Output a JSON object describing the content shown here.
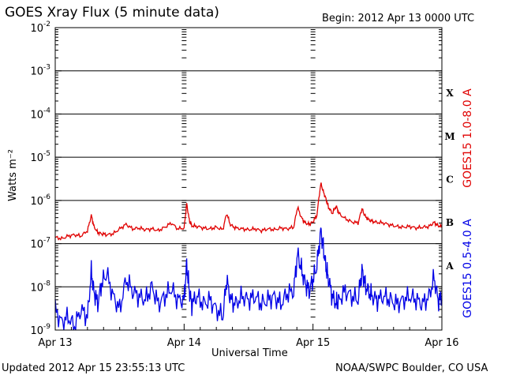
{
  "header": {
    "title": "GOES Xray Flux (5 minute data)",
    "begin": "Begin:  2012 Apr 13 0000 UTC"
  },
  "footer": {
    "updated": "Updated 2012 Apr 15 23:55:13 UTC",
    "source": "NOAA/SWPC Boulder, CO USA"
  },
  "chart_data": {
    "type": "line",
    "title": "GOES Xray Flux (5 minute data)",
    "xlabel": "Universal Time",
    "ylabel": "Watts m⁻²",
    "yscale": "log",
    "ylim": [
      1e-09,
      0.01
    ],
    "xlim": [
      0,
      3
    ],
    "x_tick_labels": [
      "Apr 13",
      "Apr 14",
      "Apr 15",
      "Apr 16"
    ],
    "y_tick_labels": [
      {
        "base": "10",
        "exp": "-9"
      },
      {
        "base": "10",
        "exp": "-8"
      },
      {
        "base": "10",
        "exp": "-7"
      },
      {
        "base": "10",
        "exp": "-6"
      },
      {
        "base": "10",
        "exp": "-5"
      },
      {
        "base": "10",
        "exp": "-4"
      },
      {
        "base": "10",
        "exp": "-3"
      },
      {
        "base": "10",
        "exp": "-2"
      }
    ],
    "flare_classes": [
      {
        "label": "X",
        "value": 0.0001
      },
      {
        "label": "M",
        "value": 1e-05
      },
      {
        "label": "C",
        "value": 1e-06
      },
      {
        "label": "B",
        "value": 1e-07
      },
      {
        "label": "A",
        "value": 1e-08
      }
    ],
    "grid": true,
    "series": [
      {
        "name": "GOES15 1.0-8.0 A",
        "color": "#e00000",
        "x": [
          0.0,
          0.05,
          0.1,
          0.15,
          0.2,
          0.25,
          0.28,
          0.3,
          0.33,
          0.36,
          0.4,
          0.45,
          0.5,
          0.55,
          0.6,
          0.65,
          0.7,
          0.75,
          0.8,
          0.85,
          0.9,
          0.95,
          1.0,
          1.02,
          1.04,
          1.06,
          1.1,
          1.15,
          1.2,
          1.25,
          1.3,
          1.33,
          1.36,
          1.4,
          1.45,
          1.5,
          1.55,
          1.6,
          1.65,
          1.7,
          1.75,
          1.8,
          1.85,
          1.88,
          1.91,
          1.94,
          1.97,
          2.0,
          2.03,
          2.06,
          2.08,
          2.1,
          2.12,
          2.15,
          2.18,
          2.2,
          2.25,
          2.3,
          2.35,
          2.38,
          2.4,
          2.43,
          2.46,
          2.5,
          2.55,
          2.6,
          2.65,
          2.7,
          2.75,
          2.8,
          2.85,
          2.9,
          2.94,
          2.97,
          3.0
        ],
        "values": [
          1.4e-07,
          1.3e-07,
          1.5e-07,
          1.6e-07,
          1.5e-07,
          2e-07,
          4.5e-07,
          2.5e-07,
          1.8e-07,
          1.7e-07,
          1.6e-07,
          1.7e-07,
          2.2e-07,
          2.8e-07,
          2.2e-07,
          2.3e-07,
          2.1e-07,
          2.2e-07,
          2e-07,
          2.4e-07,
          3e-07,
          2.2e-07,
          2.3e-07,
          8.5e-07,
          3.5e-07,
          2.6e-07,
          2.5e-07,
          2.3e-07,
          2.2e-07,
          2.4e-07,
          2.1e-07,
          5e-07,
          2.7e-07,
          2.3e-07,
          2.2e-07,
          2.1e-07,
          2.2e-07,
          2e-07,
          2.2e-07,
          2.1e-07,
          2.3e-07,
          2.2e-07,
          2.4e-07,
          7e-07,
          4e-07,
          3e-07,
          2.8e-07,
          3.2e-07,
          4.5e-07,
          2.5e-06,
          1.6e-06,
          1.1e-06,
          7e-07,
          5e-07,
          7.5e-07,
          5e-07,
          3.8e-07,
          3.2e-07,
          3e-07,
          6.5e-07,
          4.5e-07,
          3.6e-07,
          3.3e-07,
          3.1e-07,
          3e-07,
          2.7e-07,
          2.5e-07,
          2.4e-07,
          2.5e-07,
          2.3e-07,
          2.4e-07,
          2.5e-07,
          3.1e-07,
          2.6e-07,
          2.5e-07
        ]
      },
      {
        "name": "GOES15 0.5-4.0 A",
        "color": "#0000e6",
        "x": [
          0.0,
          0.05,
          0.1,
          0.15,
          0.2,
          0.25,
          0.28,
          0.3,
          0.33,
          0.36,
          0.4,
          0.45,
          0.5,
          0.55,
          0.6,
          0.65,
          0.7,
          0.75,
          0.8,
          0.85,
          0.9,
          0.95,
          1.0,
          1.02,
          1.04,
          1.06,
          1.1,
          1.15,
          1.2,
          1.25,
          1.3,
          1.33,
          1.36,
          1.4,
          1.45,
          1.5,
          1.55,
          1.6,
          1.65,
          1.7,
          1.75,
          1.8,
          1.85,
          1.88,
          1.91,
          1.94,
          1.97,
          2.0,
          2.03,
          2.06,
          2.08,
          2.1,
          2.12,
          2.15,
          2.18,
          2.2,
          2.25,
          2.3,
          2.35,
          2.38,
          2.4,
          2.43,
          2.46,
          2.5,
          2.55,
          2.6,
          2.65,
          2.7,
          2.75,
          2.8,
          2.85,
          2.9,
          2.94,
          2.97,
          3.0
        ],
        "values": [
          3e-09,
          1.5e-09,
          2e-09,
          1.2e-09,
          3e-09,
          2e-09,
          2.2e-08,
          8e-09,
          4e-09,
          1.2e-08,
          2e-08,
          6e-09,
          3e-09,
          1.5e-08,
          8e-09,
          6e-09,
          5e-09,
          1e-08,
          4e-09,
          6e-09,
          9e-09,
          5e-09,
          5e-09,
          3.5e-08,
          8e-09,
          4e-09,
          6e-09,
          4e-09,
          5e-09,
          3e-09,
          2e-09,
          1.5e-08,
          5e-09,
          4e-09,
          6e-09,
          5e-09,
          6e-09,
          4e-09,
          5e-09,
          6e-09,
          4e-09,
          7e-09,
          8e-09,
          6e-08,
          2.5e-08,
          1.2e-08,
          8e-09,
          1.5e-08,
          3e-08,
          2e-07,
          8e-08,
          3e-08,
          1.5e-08,
          6e-09,
          4e-09,
          5e-09,
          8e-09,
          6e-09,
          5e-09,
          2.5e-08,
          1.2e-08,
          8e-09,
          6e-09,
          5e-09,
          6e-09,
          5e-09,
          4e-09,
          5e-09,
          6e-09,
          5e-09,
          4e-09,
          6e-09,
          1.6e-08,
          5e-09,
          5e-09
        ]
      }
    ]
  }
}
